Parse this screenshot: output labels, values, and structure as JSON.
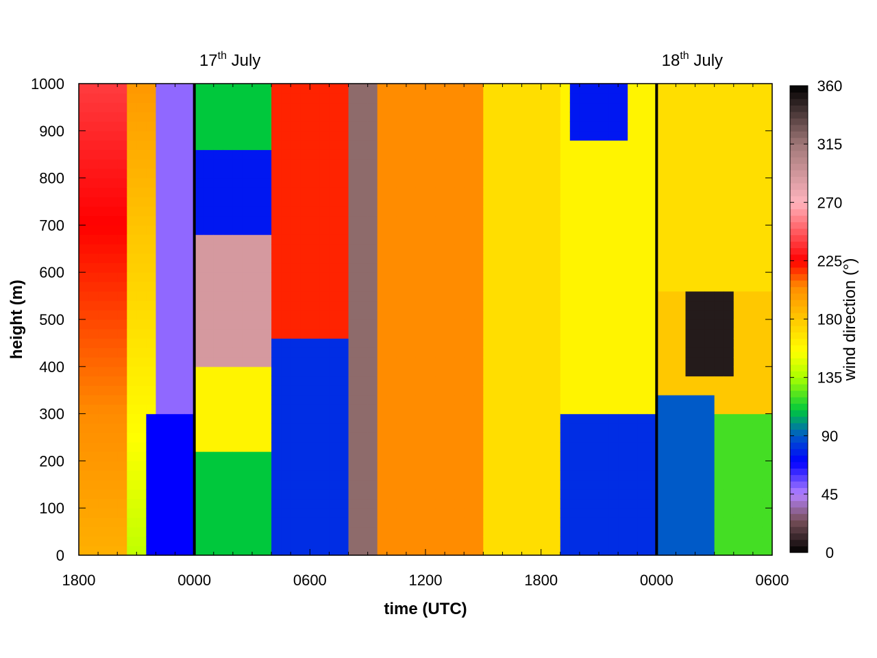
{
  "chart_data": {
    "type": "heatmap",
    "title": "",
    "xlabel": "time (UTC)",
    "ylabel": "height (m)",
    "colorbar_label": "wind direction (°)",
    "x_tick_labels": [
      "1800",
      "0000",
      "0600",
      "1200",
      "1800",
      "0000",
      "0600"
    ],
    "x_hours": [
      0,
      6,
      12,
      18,
      24,
      30,
      36
    ],
    "x_range_hours": [
      0,
      36
    ],
    "y_ticks": [
      0,
      100,
      200,
      300,
      400,
      500,
      600,
      700,
      800,
      900,
      1000
    ],
    "ylim": [
      0,
      1000
    ],
    "colorbar_ticks": [
      0,
      45,
      90,
      135,
      180,
      225,
      270,
      315,
      360
    ],
    "colorbar_range": [
      0,
      360
    ],
    "date_markers": [
      {
        "hour": 6,
        "day": "17",
        "suffix": "th",
        "month": "July"
      },
      {
        "hour": 30,
        "day": "18",
        "suffix": "th",
        "month": "July"
      }
    ],
    "grid": false,
    "cell_hours": 0.5,
    "cell_meters": 20,
    "approx_direction_regions_deg": [
      {
        "t_start": 0,
        "t_end": 2.5,
        "z_start": 0,
        "z_end": 1000,
        "dir": 190,
        "dir_top": 240
      },
      {
        "t_start": 2.5,
        "t_end": 4,
        "z_start": 0,
        "z_end": 1000,
        "dir": 140,
        "dir_top": 200
      },
      {
        "t_start": 3.5,
        "t_end": 6,
        "z_start": 0,
        "z_end": 300,
        "dir": 70
      },
      {
        "t_start": 4,
        "t_end": 6,
        "z_start": 300,
        "z_end": 1000,
        "dir": 50
      },
      {
        "t_start": 6,
        "t_end": 10,
        "z_start": 0,
        "z_end": 220,
        "dir": 110
      },
      {
        "t_start": 6,
        "t_end": 10,
        "z_start": 220,
        "z_end": 400,
        "dir": 160
      },
      {
        "t_start": 6,
        "t_end": 10,
        "z_start": 400,
        "z_end": 680,
        "dir": 290
      },
      {
        "t_start": 6,
        "t_end": 10,
        "z_start": 680,
        "z_end": 860,
        "dir": 75
      },
      {
        "t_start": 6,
        "t_end": 10,
        "z_start": 860,
        "z_end": 1000,
        "dir": 110
      },
      {
        "t_start": 10,
        "t_end": 14,
        "z_start": 0,
        "z_end": 460,
        "dir": 80
      },
      {
        "t_start": 10,
        "t_end": 14,
        "z_start": 460,
        "z_end": 1000,
        "dir": 220
      },
      {
        "t_start": 14,
        "t_end": 15.5,
        "z_start": 0,
        "z_end": 1000,
        "dir": 320
      },
      {
        "t_start": 15.5,
        "t_end": 21,
        "z_start": 0,
        "z_end": 1000,
        "dir": 205
      },
      {
        "t_start": 21,
        "t_end": 25,
        "z_start": 0,
        "z_end": 1000,
        "dir": 170
      },
      {
        "t_start": 25,
        "t_end": 30,
        "z_start": 0,
        "z_end": 300,
        "dir": 80
      },
      {
        "t_start": 25,
        "t_end": 30,
        "z_start": 300,
        "z_end": 1000,
        "dir": 160
      },
      {
        "t_start": 25.5,
        "t_end": 28.5,
        "z_start": 880,
        "z_end": 1000,
        "dir": 75
      },
      {
        "t_start": 30,
        "t_end": 33,
        "z_start": 0,
        "z_end": 340,
        "dir": 90
      },
      {
        "t_start": 31.5,
        "t_end": 34,
        "z_start": 380,
        "z_end": 560,
        "dir": 350
      },
      {
        "t_start": 30,
        "t_end": 36,
        "z_start": 560,
        "z_end": 1000,
        "dir": 170
      },
      {
        "t_start": 33,
        "t_end": 36,
        "z_start": 0,
        "z_end": 300,
        "dir": 120
      }
    ]
  }
}
